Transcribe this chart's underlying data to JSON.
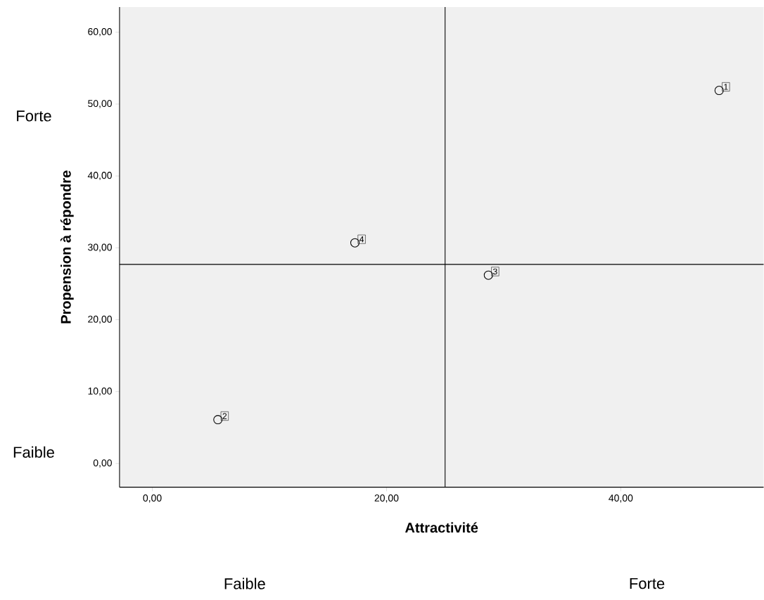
{
  "chart_data": {
    "type": "scatter",
    "xlabel": "Attractivité",
    "ylabel": "Propension à répondre",
    "x": [
      48.4,
      5.6,
      28.7,
      17.3
    ],
    "values": [
      51.9,
      6.1,
      26.2,
      30.7
    ],
    "color": "#000000",
    "marker": "circle",
    "grid": false,
    "xlim": [
      -2.8,
      52.2
    ],
    "ylim": [
      -3.3,
      63.5
    ],
    "xticks": [
      {
        "value": 0,
        "label": "0,00"
      },
      {
        "value": 20,
        "label": "20,00"
      },
      {
        "value": 40,
        "label": "40,00"
      }
    ],
    "yticks": [
      {
        "value": 0,
        "label": "0,00"
      },
      {
        "value": 10,
        "label": "10,00"
      },
      {
        "value": 20,
        "label": "20,00"
      },
      {
        "value": 30,
        "label": "30,00"
      },
      {
        "value": 40,
        "label": "40,00"
      },
      {
        "value": 50,
        "label": "50,00"
      },
      {
        "value": 60,
        "label": "60,00"
      }
    ],
    "ref_lines": [
      {
        "axis": "x",
        "value": 25.0
      },
      {
        "axis": "y",
        "value": 27.7
      }
    ],
    "annotations": [
      {
        "text": "1",
        "x": 48.4,
        "y": 51.9
      },
      {
        "text": "2",
        "x": 5.6,
        "y": 6.1
      },
      {
        "text": "3",
        "x": 28.7,
        "y": 26.2
      },
      {
        "text": "4",
        "x": 17.3,
        "y": 30.7
      },
      "Forte",
      "Faible",
      "Faible",
      "Forte"
    ]
  }
}
